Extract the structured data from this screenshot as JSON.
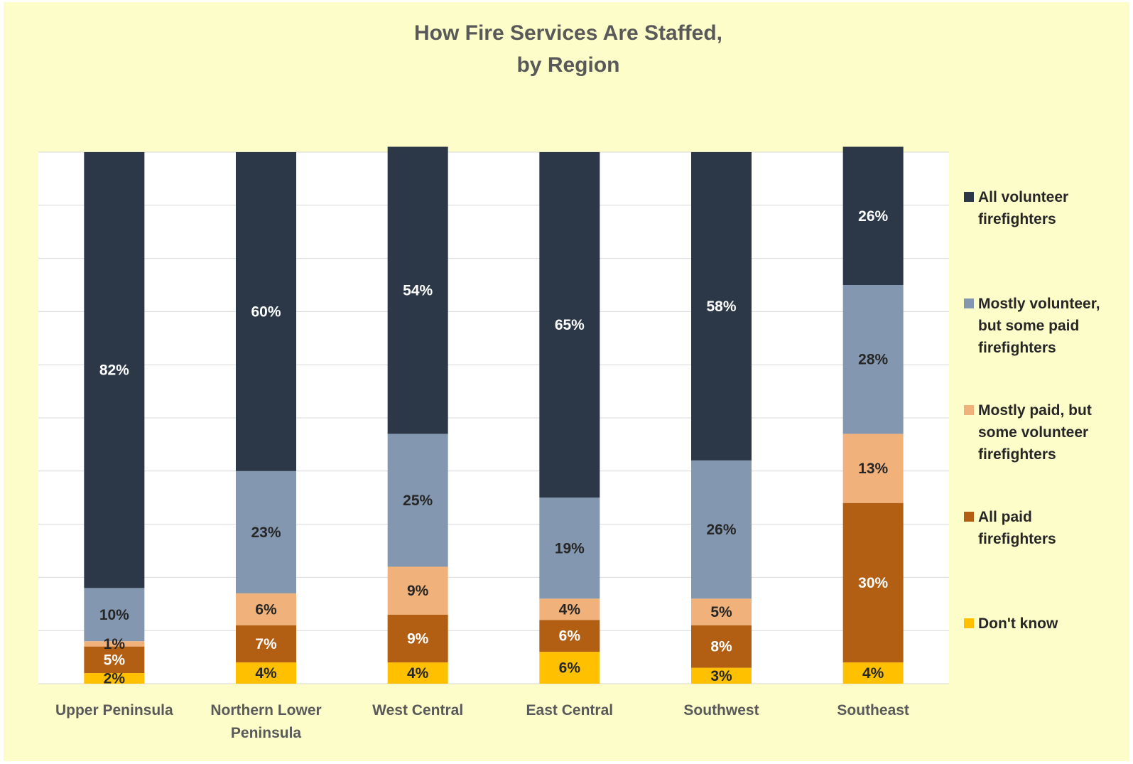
{
  "chart_data": {
    "type": "stacked-bar",
    "title": [
      "How Fire Services Are Staffed,",
      "by Region"
    ],
    "categories": [
      [
        "Upper Peninsula"
      ],
      [
        "Northern Lower",
        "Peninsula"
      ],
      [
        "West Central"
      ],
      [
        "East Central"
      ],
      [
        "Southwest"
      ],
      [
        "Southeast"
      ]
    ],
    "ylim": [
      0,
      100
    ],
    "grid": true,
    "legend_position": "right",
    "series": [
      {
        "name": "Don't know",
        "color": "#ffc000",
        "label_color": "#262626",
        "values": [
          2,
          4,
          4,
          6,
          3,
          4
        ]
      },
      {
        "name": "All paid firefighters",
        "color": "#b25f14",
        "label_color": "#ffffff",
        "values": [
          5,
          7,
          9,
          6,
          8,
          30
        ]
      },
      {
        "name": "Mostly paid, but some volunteer firefighters",
        "color": "#f0b27a",
        "label_color": "#262626",
        "values": [
          1,
          6,
          9,
          4,
          5,
          13
        ]
      },
      {
        "name": "Mostly volunteer, but some paid firefighters",
        "color": "#8497b0",
        "label_color": "#262626",
        "values": [
          10,
          23,
          25,
          19,
          26,
          28
        ]
      },
      {
        "name": "All volunteer firefighters",
        "color": "#2c3848",
        "label_color": "#ffffff",
        "values": [
          82,
          60,
          54,
          65,
          58,
          26
        ]
      }
    ],
    "legend": [
      {
        "lines": [
          "All volunteer",
          "firefighters"
        ],
        "color": "#2c3848"
      },
      {
        "lines": [
          "Mostly volunteer,",
          "but some paid",
          "firefighters"
        ],
        "color": "#8497b0"
      },
      {
        "lines": [
          "Mostly paid, but",
          "some volunteer",
          "firefighters"
        ],
        "color": "#f0b27a"
      },
      {
        "lines": [
          "All paid",
          "firefighters"
        ],
        "color": "#b25f14"
      },
      {
        "lines": [
          "Don't know"
        ],
        "color": "#ffc000"
      }
    ]
  }
}
